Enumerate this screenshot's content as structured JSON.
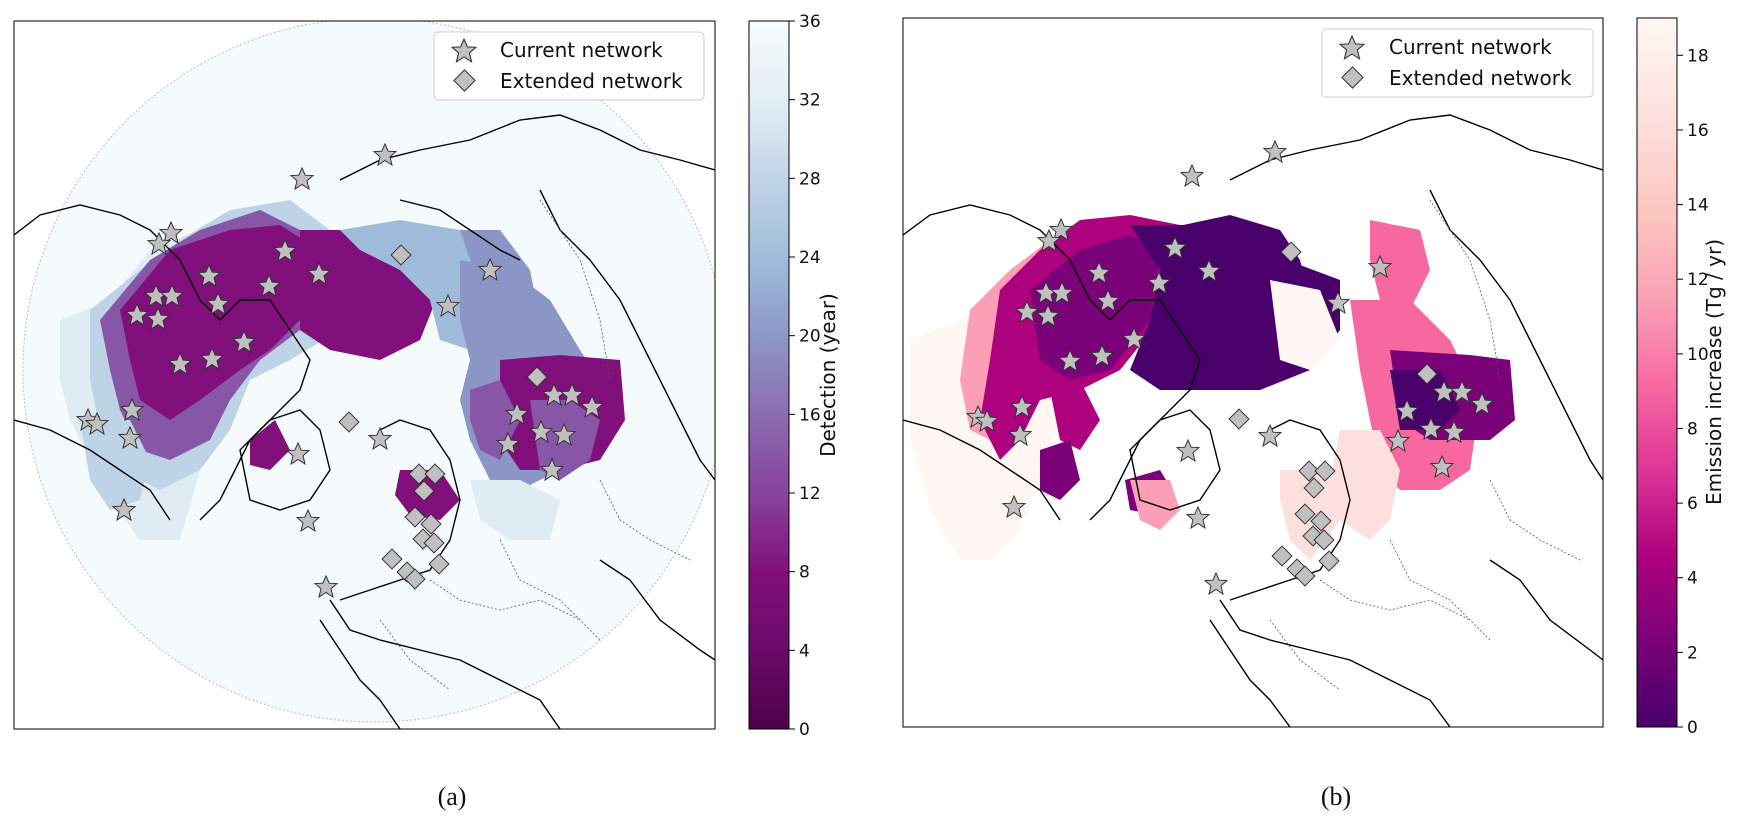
{
  "panels": [
    {
      "caption": "(a)",
      "colorbar": {
        "label": "Detection (year)",
        "ticks": [
          "0",
          "4",
          "8",
          "12",
          "16",
          "20",
          "24",
          "28",
          "32",
          "36"
        ],
        "colors": [
          "#4d004b",
          "#6a0b6a",
          "#810f7c",
          "#8856a7",
          "#8c6bb1",
          "#8c96c6",
          "#9ebcda",
          "#bfd3e6",
          "#e0ecf4",
          "#f7fcfd"
        ]
      },
      "legend": {
        "current": "Current network",
        "extended": "Extended network"
      }
    },
    {
      "caption": "(b)",
      "colorbar": {
        "label": "Emission increase (Tg / yr)",
        "ticks": [
          "0",
          "2",
          "4",
          "6",
          "8",
          "10",
          "12",
          "14",
          "16",
          "18"
        ],
        "colors": [
          "#49006a",
          "#7a0177",
          "#ae017e",
          "#dd3497",
          "#f768a1",
          "#fa9fb5",
          "#fcc5c0",
          "#fde0dd",
          "#fff7f3"
        ]
      },
      "legend": {
        "current": "Current network",
        "extended": "Extended network"
      }
    }
  ],
  "colors": {
    "marker_fill": "#c0c0c0",
    "marker_stroke": "#333333",
    "coast": "#000000",
    "border": "#555555"
  }
}
